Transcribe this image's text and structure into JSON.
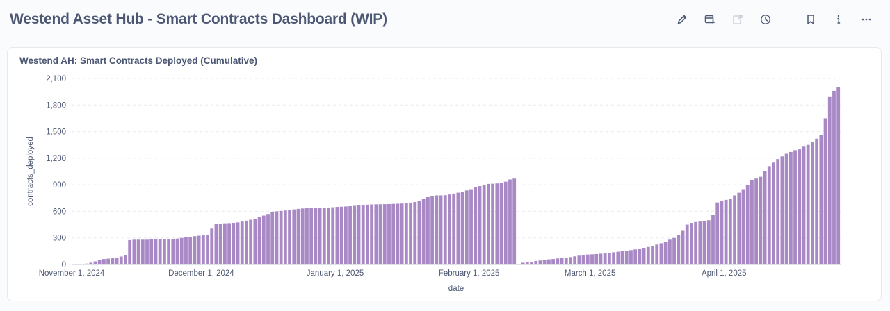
{
  "header": {
    "title": "Westend Asset Hub - Smart Contracts Dashboard (WIP)",
    "icons": [
      "pencil-icon",
      "add-card-icon",
      "share-icon",
      "clock-icon",
      "bookmark-icon",
      "info-icon",
      "more-icon"
    ]
  },
  "card": {
    "title": "Westend AH: Smart Contracts Deployed (Cumulative)"
  },
  "chart_data": {
    "type": "bar",
    "title": "Westend AH: Smart Contracts Deployed (Cumulative)",
    "xlabel": "date",
    "ylabel": "contracts_deployed",
    "ylim": [
      0,
      2100
    ],
    "yticks": [
      0,
      300,
      600,
      900,
      1200,
      1500,
      1800,
      2100
    ],
    "ytick_labels": [
      "0",
      "300",
      "600",
      "900",
      "1,200",
      "1,500",
      "1,800",
      "2,100"
    ],
    "xticks": [
      {
        "date": "2024-11-01",
        "label": "November 1, 2024"
      },
      {
        "date": "2024-12-01",
        "label": "December 1, 2024"
      },
      {
        "date": "2025-01-01",
        "label": "January 1, 2025"
      },
      {
        "date": "2025-02-01",
        "label": "February 1, 2025"
      },
      {
        "date": "2025-03-01",
        "label": "March 1, 2025"
      },
      {
        "date": "2025-04-01",
        "label": "April 1, 2025"
      }
    ],
    "grid": true,
    "color": "#a989c5",
    "segments": [
      {
        "start_date": "2024-11-01",
        "values": [
          2,
          3,
          5,
          10,
          20,
          35,
          55,
          62,
          66,
          70,
          72,
          90,
          105,
          275,
          280,
          280,
          280,
          280,
          282,
          284,
          285,
          287,
          288,
          290,
          292,
          300,
          308,
          312,
          320,
          325,
          330,
          332,
          405,
          460,
          462,
          465,
          467,
          470,
          475,
          485,
          495,
          505,
          515,
          535,
          552,
          570,
          590,
          600,
          605,
          610,
          615,
          622,
          628,
          632,
          636,
          638,
          639,
          640,
          641,
          643,
          646,
          650,
          652,
          655,
          658,
          662,
          666,
          670,
          675,
          678,
          679,
          680,
          681,
          682,
          684,
          686,
          688,
          692,
          698,
          705,
          720,
          740,
          760,
          775,
          780,
          780,
          782,
          790,
          800,
          810,
          822,
          836,
          850,
          870,
          885,
          900,
          910,
          912,
          915,
          918,
          935,
          960,
          970
        ]
      },
      {
        "start_date": "2025-02-13",
        "values": [
          20,
          25,
          30,
          40,
          45,
          50,
          58,
          62,
          68,
          72,
          78,
          84,
          92,
          100,
          108,
          112,
          115,
          118,
          122,
          126,
          132,
          138,
          144,
          150,
          156,
          162,
          170,
          178,
          188,
          198,
          210,
          225,
          240,
          258,
          280,
          300,
          330,
          380,
          450,
          470,
          480,
          485,
          490,
          500,
          560,
          700,
          720,
          730,
          740,
          780,
          810,
          850,
          900,
          950,
          970,
          990,
          1050,
          1110,
          1150,
          1190,
          1220,
          1250,
          1270,
          1290,
          1300,
          1330,
          1350,
          1380,
          1420,
          1460,
          1650,
          1890,
          1960,
          2000
        ]
      }
    ]
  }
}
